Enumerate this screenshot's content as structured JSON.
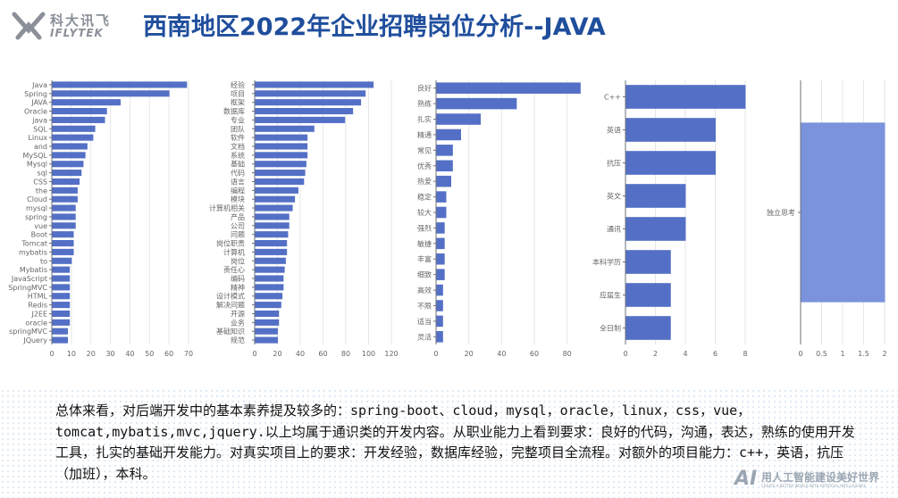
{
  "logo": {
    "cn": "科大讯飞",
    "en": "IFLYTEK"
  },
  "title": "西南地区2022年企业招聘岗位分析--JAVA",
  "summary": "总体来看，对后端开发中的基本素养提及较多的：spring-boot、cloud，mysql，oracle，linux，css，vue，tomcat,mybatis,mvc,jquery.以上均属于通识类的开发内容。从职业能力上看到要求：良好的代码，沟通，表达，熟练的使用开发工具，扎实的基础开发能力。对真实项目上的要求：开发经验，数据库经验，完整项目全流程。对额外的项目能力：c++，英语，抗压（加班），本科。",
  "footer": {
    "ai": "AI",
    "cn": "用人工智能建设美好世界",
    "en": "CREATE A BETTER WORLD WITH ARTIFICIAL INTELLIGENCE"
  },
  "colors": {
    "bar": "#5470c6",
    "bar_light": "#7b93dc",
    "title": "#1f4e9c"
  },
  "chart_data": [
    {
      "type": "bar",
      "orientation": "horizontal",
      "categories": [
        "Java",
        "Spring",
        "JAVA",
        "Oracle",
        "java",
        "SQL",
        "Linux",
        "and",
        "MySQL",
        "Mysql",
        "sql",
        "CSS",
        "the",
        "Cloud",
        "mysql",
        "spring",
        "vue",
        "Boot",
        "Tomcat",
        "mybatis",
        "to",
        "Mybatis",
        "JavaScript",
        "SpringMVC",
        "HTML",
        "Redis",
        "J2EE",
        "oracle",
        "springMVC",
        "JQuery"
      ],
      "values": [
        69,
        60,
        35,
        28,
        27,
        22,
        21,
        18,
        17,
        16,
        15,
        14,
        13,
        13,
        12,
        12,
        12,
        11,
        11,
        11,
        10,
        9,
        9,
        9,
        9,
        9,
        9,
        9,
        8,
        8
      ],
      "xlim": [
        0,
        70
      ],
      "ticks": [
        0,
        10,
        20,
        30,
        40,
        50,
        60,
        70
      ]
    },
    {
      "type": "bar",
      "orientation": "horizontal",
      "categories": [
        "经验",
        "项目",
        "框架",
        "数据库",
        "专业",
        "团队",
        "软件",
        "文档",
        "系统",
        "基础",
        "代码",
        "语言",
        "编程",
        "模块",
        "计算机相关",
        "产品",
        "公司",
        "问题",
        "岗位职责",
        "计算机",
        "岗位",
        "责任心",
        "编码",
        "精神",
        "设计模式",
        "解决问题",
        "开源",
        "业务",
        "基础知识",
        "规范"
      ],
      "values": [
        104,
        97,
        93,
        86,
        79,
        52,
        46,
        46,
        46,
        45,
        44,
        43,
        38,
        35,
        33,
        30,
        30,
        29,
        28,
        28,
        27,
        26,
        25,
        25,
        24,
        23,
        21,
        21,
        20,
        20
      ],
      "xlim": [
        0,
        120
      ],
      "ticks": [
        0,
        20,
        40,
        60,
        80,
        100,
        120
      ]
    },
    {
      "type": "bar",
      "orientation": "horizontal",
      "categories": [
        "良好",
        "熟练",
        "扎实",
        "精通",
        "常见",
        "优秀",
        "热爱",
        "稳定",
        "较大",
        "强烈",
        "敏捷",
        "丰富",
        "细致",
        "高效",
        "不限",
        "适当",
        "灵活"
      ],
      "values": [
        88,
        49,
        27,
        15,
        10,
        10,
        9,
        6,
        6,
        5,
        5,
        5,
        5,
        4,
        4,
        4,
        4
      ],
      "xlim": [
        0,
        90
      ],
      "ticks": [
        0,
        20,
        40,
        60,
        80
      ]
    },
    {
      "type": "bar",
      "orientation": "horizontal",
      "categories": [
        "C++",
        "英语",
        "抗压",
        "英文",
        "通讯",
        "本科学历",
        "应届生",
        "全日制"
      ],
      "values": [
        8,
        6,
        6,
        4,
        4,
        3,
        3,
        3
      ],
      "xlim": [
        0,
        8
      ],
      "ticks": [
        0,
        2,
        4,
        6,
        8
      ]
    },
    {
      "type": "bar",
      "orientation": "horizontal",
      "categories": [
        "独立思考"
      ],
      "values": [
        2
      ],
      "xlim": [
        0,
        2
      ],
      "ticks": [
        0,
        0.5,
        1,
        1.5,
        2
      ]
    }
  ]
}
